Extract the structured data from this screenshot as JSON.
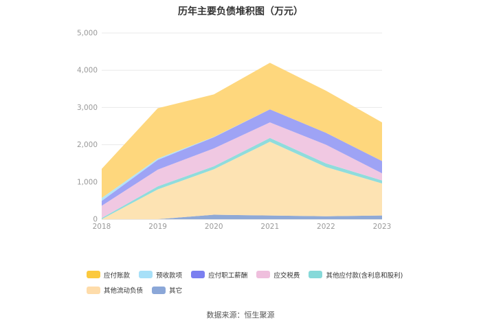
{
  "title": "历年主要负债堆积图（万元）",
  "source": "数据来源：恒生聚源",
  "chart_data": {
    "type": "area",
    "stacked": true,
    "categories": [
      "2018",
      "2019",
      "2020",
      "2021",
      "2022",
      "2023"
    ],
    "y_ticks": [
      "0",
      "1,000",
      "2,000",
      "3,000",
      "4,000",
      "5,000"
    ],
    "ylim": [
      0,
      5000
    ],
    "grid": true,
    "legend_position": "bottom",
    "series": [
      {
        "name": "其它",
        "color": "#8fa9d6",
        "values": [
          0,
          0,
          120,
          100,
          80,
          100
        ]
      },
      {
        "name": "其他流动负债",
        "color": "#fde3b3",
        "values": [
          0,
          800,
          1220,
          1980,
          1320,
          860
        ]
      },
      {
        "name": "其他应付款(含利息和股利)",
        "color": "#8fdcdc",
        "values": [
          30,
          80,
          80,
          100,
          100,
          80
        ]
      },
      {
        "name": "应交税费",
        "color": "#f0c8e2",
        "values": [
          330,
          450,
          480,
          420,
          500,
          190
        ]
      },
      {
        "name": "应付职工薪酬",
        "color": "#9ea3f5",
        "values": [
          130,
          260,
          300,
          350,
          320,
          330
        ]
      },
      {
        "name": "预收款项",
        "color": "#b3e3f7",
        "values": [
          80,
          40,
          10,
          0,
          0,
          0
        ]
      },
      {
        "name": "应付账款",
        "color": "#fed77d",
        "values": [
          780,
          1350,
          1140,
          1250,
          1130,
          1040
        ]
      }
    ]
  },
  "legend": [
    {
      "label": "应付账款",
      "color": "#fbc93e"
    },
    {
      "label": "预收款项",
      "color": "#a7e0f8"
    },
    {
      "label": "应付职工薪酬",
      "color": "#7b7ff0"
    },
    {
      "label": "应交税费",
      "color": "#efbfdd"
    },
    {
      "label": "其他应付款(含利息和股利)",
      "color": "#86d9d9"
    },
    {
      "label": "其他流动负债",
      "color": "#fedcaa"
    },
    {
      "label": "其它",
      "color": "#8ba7d8"
    }
  ]
}
